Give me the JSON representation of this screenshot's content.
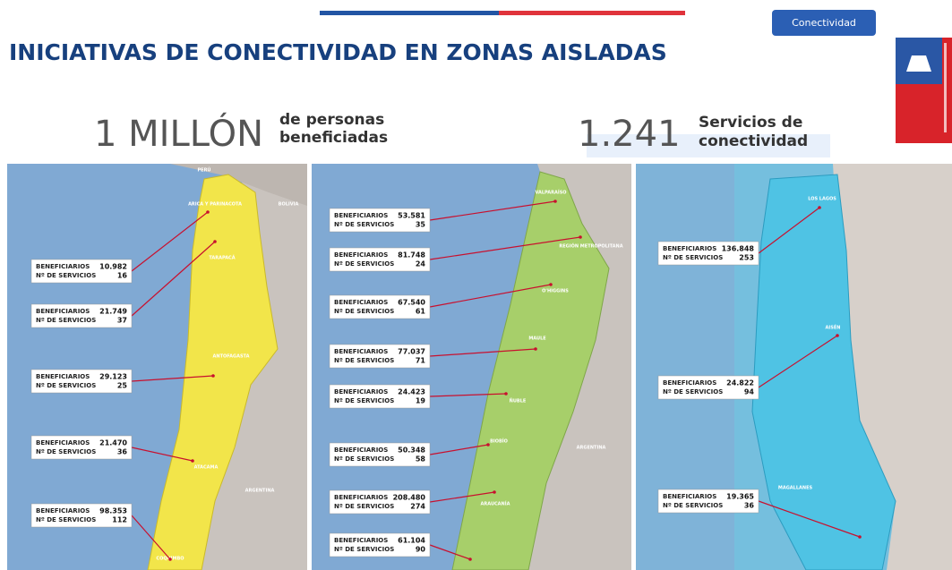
{
  "header": {
    "title": "INICIATIVAS DE CONECTIVIDAD EN ZONAS AISLADAS",
    "button": "Conectividad"
  },
  "stats": [
    {
      "number": "1 MILLÓN",
      "caption": [
        "de personas",
        "beneficiadas"
      ]
    },
    {
      "number": "1.241",
      "caption": [
        "Servicios de",
        "conectividad"
      ]
    }
  ],
  "labels": {
    "beneficiarios": "BENEFICIARIOS",
    "servicios": "Nº DE SERVICIOS"
  },
  "panels": [
    {
      "regions": [
        "PERÚ",
        "BOLIVIA",
        "ARICA Y PARINACOTA",
        "TARAPACÁ",
        "ANTOFAGASTA",
        "ATACAMA",
        "ARGENTINA",
        "COQUIMBO"
      ],
      "boxes": [
        {
          "beneficiarios": "10.982",
          "servicios": "16"
        },
        {
          "beneficiarios": "21.749",
          "servicios": "37"
        },
        {
          "beneficiarios": "29.123",
          "servicios": "25"
        },
        {
          "beneficiarios": "21.470",
          "servicios": "36"
        },
        {
          "beneficiarios": "98.353",
          "servicios": "112"
        }
      ]
    },
    {
      "regions": [
        "VALPARAÍSO",
        "REGIÓN METROPOLITANA",
        "O'HIGGINS",
        "MAULE",
        "ÑUBLE",
        "BIOBÍO",
        "ARGENTINA",
        "ARAUCANÍA"
      ],
      "boxes": [
        {
          "beneficiarios": "53.581",
          "servicios": "35"
        },
        {
          "beneficiarios": "81.748",
          "servicios": "24"
        },
        {
          "beneficiarios": "67.540",
          "servicios": "61"
        },
        {
          "beneficiarios": "77.037",
          "servicios": "71"
        },
        {
          "beneficiarios": "24.423",
          "servicios": "19"
        },
        {
          "beneficiarios": "50.348",
          "servicios": "58"
        },
        {
          "beneficiarios": "208.480",
          "servicios": "274"
        },
        {
          "beneficiarios": "61.104",
          "servicios": "90"
        }
      ]
    },
    {
      "regions": [
        "LOS LAGOS",
        "AISÉN",
        "MAGALLANES"
      ],
      "boxes": [
        {
          "beneficiarios": "136.848",
          "servicios": "253"
        },
        {
          "beneficiarios": "24.822",
          "servicios": "94"
        },
        {
          "beneficiarios": "19.365",
          "servicios": "36"
        }
      ]
    }
  ]
}
